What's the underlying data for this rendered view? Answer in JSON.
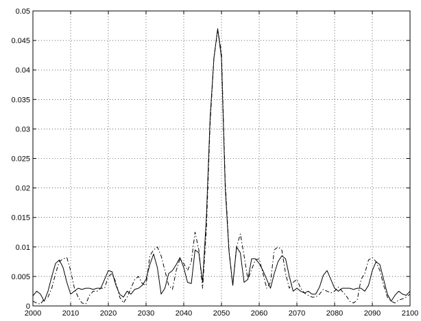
{
  "chart_data": {
    "type": "line",
    "title": "",
    "xlabel": "",
    "ylabel": "",
    "xlim": [
      2000,
      2100
    ],
    "ylim": [
      0,
      0.05
    ],
    "grid": true,
    "x_ticks": [
      2000,
      2010,
      2020,
      2030,
      2040,
      2050,
      2060,
      2070,
      2080,
      2090,
      2100
    ],
    "x_tick_labels": [
      "2000",
      "2010",
      "2020",
      "2030",
      "2040",
      "2050",
      "2060",
      "2070",
      "2080",
      "2090",
      "2100"
    ],
    "y_ticks": [
      0,
      0.005,
      0.01,
      0.015,
      0.02,
      0.025,
      0.03,
      0.035,
      0.04,
      0.045,
      0.05
    ],
    "y_tick_labels": [
      "0",
      "0.005",
      "0.01",
      "0.015",
      "0.02",
      "0.025",
      "0.03",
      "0.035",
      "0.04",
      "0.045",
      "0.05"
    ],
    "x": [
      2000,
      2001,
      2002,
      2003,
      2004,
      2005,
      2006,
      2007,
      2008,
      2009,
      2010,
      2011,
      2012,
      2013,
      2014,
      2015,
      2016,
      2017,
      2018,
      2019,
      2020,
      2021,
      2022,
      2023,
      2024,
      2025,
      2026,
      2027,
      2028,
      2029,
      2030,
      2031,
      2032,
      2033,
      2034,
      2035,
      2036,
      2037,
      2038,
      2039,
      2040,
      2041,
      2042,
      2043,
      2044,
      2045,
      2046,
      2047,
      2048,
      2049,
      2050,
      2051,
      2052,
      2053,
      2054,
      2055,
      2056,
      2057,
      2058,
      2059,
      2060,
      2061,
      2062,
      2063,
      2064,
      2065,
      2066,
      2067,
      2068,
      2069,
      2070,
      2071,
      2072,
      2073,
      2074,
      2075,
      2076,
      2077,
      2078,
      2079,
      2080,
      2081,
      2082,
      2083,
      2084,
      2085,
      2086,
      2087,
      2088,
      2089,
      2090,
      2091,
      2092,
      2093,
      2094,
      2095,
      2096,
      2097,
      2098,
      2099,
      2100
    ],
    "series": [
      {
        "style": "solid",
        "color": "#000000",
        "values": [
          0.0017,
          0.0025,
          0.002,
          0.0008,
          0.0025,
          0.005,
          0.0072,
          0.0078,
          0.0065,
          0.004,
          0.002,
          0.0025,
          0.003,
          0.0028,
          0.003,
          0.003,
          0.0028,
          0.003,
          0.003,
          0.0045,
          0.006,
          0.0058,
          0.0035,
          0.002,
          0.0015,
          0.0025,
          0.002,
          0.0028,
          0.003,
          0.0035,
          0.0045,
          0.007,
          0.0088,
          0.0065,
          0.002,
          0.003,
          0.0055,
          0.006,
          0.007,
          0.0082,
          0.0065,
          0.004,
          0.0038,
          0.0095,
          0.009,
          0.004,
          0.015,
          0.032,
          0.042,
          0.047,
          0.042,
          0.02,
          0.0092,
          0.0035,
          0.01,
          0.009,
          0.004,
          0.0045,
          0.008,
          0.008,
          0.0072,
          0.006,
          0.0045,
          0.003,
          0.0055,
          0.0075,
          0.0085,
          0.008,
          0.005,
          0.0025,
          0.003,
          0.0025,
          0.0022,
          0.0025,
          0.002,
          0.002,
          0.0032,
          0.0052,
          0.006,
          0.0045,
          0.003,
          0.0025,
          0.003,
          0.003,
          0.003,
          0.0028,
          0.003,
          0.003,
          0.0025,
          0.0035,
          0.006,
          0.0075,
          0.007,
          0.0045,
          0.002,
          0.0008,
          0.0018,
          0.0025,
          0.002,
          0.0018,
          0.0025
        ]
      },
      {
        "style": "dashdot",
        "color": "#000000",
        "values": [
          0.0008,
          0.0005,
          0.0003,
          0.0012,
          0.0015,
          0.003,
          0.0055,
          0.0075,
          0.008,
          0.0082,
          0.006,
          0.003,
          0.0015,
          0.0005,
          0.0003,
          0.0018,
          0.0025,
          0.0025,
          0.003,
          0.003,
          0.005,
          0.0055,
          0.004,
          0.0015,
          0.0005,
          0.0015,
          0.003,
          0.0045,
          0.005,
          0.0038,
          0.0035,
          0.0085,
          0.0095,
          0.01,
          0.0085,
          0.006,
          0.0035,
          0.0028,
          0.006,
          0.008,
          0.0072,
          0.006,
          0.0075,
          0.0125,
          0.0095,
          0.003,
          0.013,
          0.031,
          0.042,
          0.0468,
          0.043,
          0.021,
          0.0095,
          0.0035,
          0.01,
          0.0122,
          0.0085,
          0.0045,
          0.0062,
          0.0078,
          0.008,
          0.0055,
          0.003,
          0.004,
          0.0095,
          0.01,
          0.0095,
          0.0055,
          0.003,
          0.004,
          0.0045,
          0.003,
          0.0022,
          0.0018,
          0.0015,
          0.0015,
          0.002,
          0.0028,
          0.0025,
          0.0022,
          0.0025,
          0.0032,
          0.0025,
          0.0018,
          0.0008,
          0.0005,
          0.001,
          0.0045,
          0.0055,
          0.0078,
          0.0082,
          0.0075,
          0.006,
          0.0035,
          0.0015,
          0.0008,
          0.0005,
          0.001,
          0.0012,
          0.0015,
          0.002
        ]
      }
    ]
  }
}
